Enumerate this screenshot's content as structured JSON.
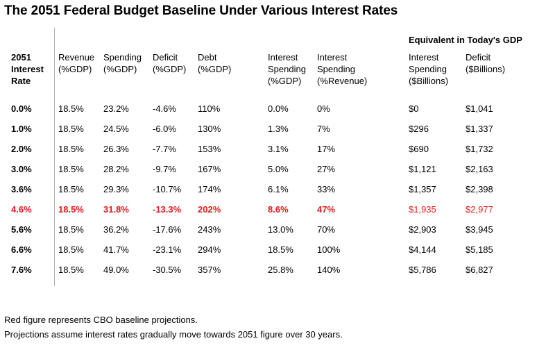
{
  "title": "The 2051 Federal Budget Baseline Under Various Interest Rates",
  "group_header": "Equivalent in Today's GDP",
  "headers": [
    "2051\nInterest\nRate",
    "Revenue\n(%GDP)",
    "Spending\n(%GDP)",
    "Deficit\n(%GDP)",
    "Debt\n(%GDP)",
    "Interest\nSpending\n(%GDP)",
    "Interest\nSpending\n(%Revenue)",
    "Interest\nSpending\n($Billions)",
    "Deficit\n($Billions)"
  ],
  "rows": [
    [
      "0.0%",
      "18.5%",
      "23.2%",
      "-4.6%",
      "110%",
      "0.0%",
      "0%",
      "$0",
      "$1,041"
    ],
    [
      "1.0%",
      "18.5%",
      "24.5%",
      "-6.0%",
      "130%",
      "1.3%",
      "7%",
      "$296",
      "$1,337"
    ],
    [
      "2.0%",
      "18.5%",
      "26.3%",
      "-7.7%",
      "153%",
      "3.1%",
      "17%",
      "$690",
      "$1,732"
    ],
    [
      "3.0%",
      "18.5%",
      "28.2%",
      "-9.7%",
      "167%",
      "5.0%",
      "27%",
      "$1,121",
      "$2,163"
    ],
    [
      "3.6%",
      "18.5%",
      "29.3%",
      "-10.7%",
      "174%",
      "6.1%",
      "33%",
      "$1,357",
      "$2,398"
    ],
    [
      "4.6%",
      "18.5%",
      "31.8%",
      "-13.3%",
      "202%",
      "8.6%",
      "47%",
      "$1,935",
      "$2,977"
    ],
    [
      "5.6%",
      "18.5%",
      "36.2%",
      "-17.6%",
      "243%",
      "13.0%",
      "70%",
      "$2,903",
      "$3,945"
    ],
    [
      "6.6%",
      "18.5%",
      "41.7%",
      "-23.1%",
      "294%",
      "18.5%",
      "100%",
      "$4,144",
      "$5,185"
    ],
    [
      "7.6%",
      "18.5%",
      "49.0%",
      "-30.5%",
      "357%",
      "25.8%",
      "140%",
      "$5,786",
      "$6,827"
    ]
  ],
  "highlight_row": 5,
  "highlight_color": "#e31b1b",
  "notes": [
    "Red figure represents CBO baseline projections.",
    "Projections assume interest rates gradually move towards 2051 figure over 30 years."
  ]
}
